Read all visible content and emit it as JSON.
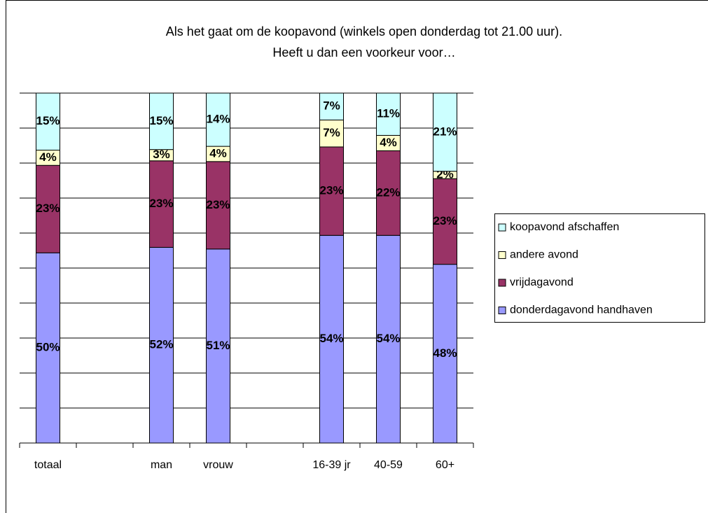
{
  "chart_data": {
    "type": "stacked_bar_100",
    "title": "Als het gaat om de koopavond (winkels open donderdag tot 21.00 uur).\nHeeft u dan een voorkeur voor…",
    "categories": [
      "totaal",
      null,
      "man",
      "vrouw",
      null,
      "16-39 jr",
      "40-59",
      "60+"
    ],
    "series": [
      {
        "name": "donderdagavond handhaven",
        "color": "#9999ff",
        "values": [
          50,
          null,
          52,
          51,
          null,
          54,
          54,
          48
        ],
        "value_labels": [
          "50%",
          null,
          "52%",
          "51%",
          null,
          "54%",
          "54%",
          "48%"
        ]
      },
      {
        "name": "vrijdagavond",
        "color": "#993366",
        "values": [
          23,
          null,
          23,
          23,
          null,
          23,
          22,
          23
        ],
        "value_labels": [
          "23%",
          null,
          "23%",
          "23%",
          null,
          "23%",
          "22%",
          "23%"
        ]
      },
      {
        "name": "andere avond",
        "color": "#ffffcc",
        "values": [
          4,
          null,
          3,
          4,
          null,
          7,
          4,
          2
        ],
        "value_labels": [
          "4%",
          null,
          "3%",
          "4%",
          null,
          "7%",
          "4%",
          "2%"
        ]
      },
      {
        "name": "koopavond afschaffen",
        "color": "#ccffff",
        "values": [
          15,
          null,
          15,
          14,
          null,
          7,
          11,
          21
        ],
        "value_labels": [
          "15%",
          null,
          "15%",
          "14%",
          null,
          "7%",
          "11%",
          "21%"
        ]
      }
    ],
    "grid": true,
    "legend": "right"
  }
}
